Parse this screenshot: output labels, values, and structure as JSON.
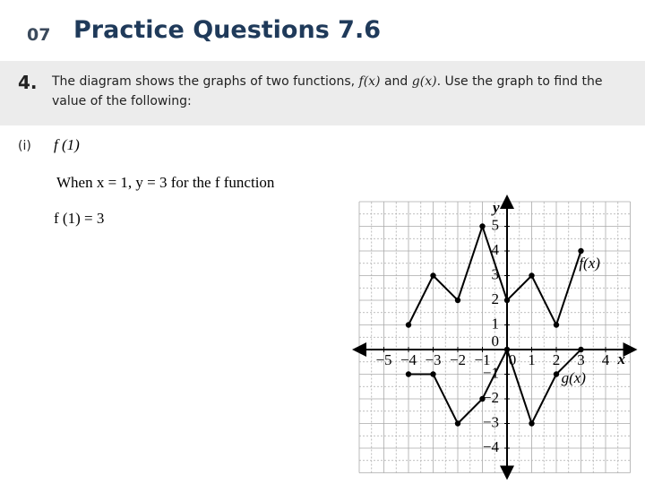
{
  "header": {
    "number": "07",
    "title": "Practice Questions 7.6"
  },
  "question": {
    "number": "4.",
    "parts": [
      "The diagram shows the graphs of two functions, ",
      "f(x)",
      " and ",
      "g(x)",
      ". Use the graph to find the value of the following:"
    ]
  },
  "subquestion": {
    "number": "(i)",
    "expression": "f (1)",
    "working": "When x = 1, y = 3 for the f function",
    "answer": "f (1) = 3"
  },
  "graph": {
    "x_label": "x",
    "y_label": "y",
    "xlim": [
      -6,
      5
    ],
    "ylim": [
      -5,
      6
    ],
    "xticks": [
      {
        "value": -5,
        "label": "−5"
      },
      {
        "value": -4,
        "label": "−4"
      },
      {
        "value": -3,
        "label": "−3"
      },
      {
        "value": -2,
        "label": "−2"
      },
      {
        "value": -1,
        "label": "−1"
      },
      0,
      1,
      2,
      3,
      4
    ],
    "yticks": [
      {
        "value": -4,
        "label": "−4"
      },
      {
        "value": -3,
        "label": "−3"
      },
      {
        "value": -2,
        "label": "−2"
      },
      {
        "value": -1,
        "label": "−1"
      },
      0,
      1,
      2,
      3,
      4,
      5
    ],
    "series": [
      {
        "name": "f(x)",
        "color": "#000000",
        "x": [
          -4,
          -3,
          -2,
          -1,
          0,
          1,
          2,
          3
        ],
        "values": [
          1,
          3,
          2,
          5,
          2,
          3,
          1,
          4
        ]
      },
      {
        "name": "g(x)",
        "color": "#000000",
        "x": [
          -4,
          -3,
          -2,
          -1,
          0,
          1,
          2,
          3
        ],
        "values": [
          -1,
          -1,
          -3,
          -2,
          0,
          -3,
          -1,
          0
        ]
      }
    ]
  }
}
